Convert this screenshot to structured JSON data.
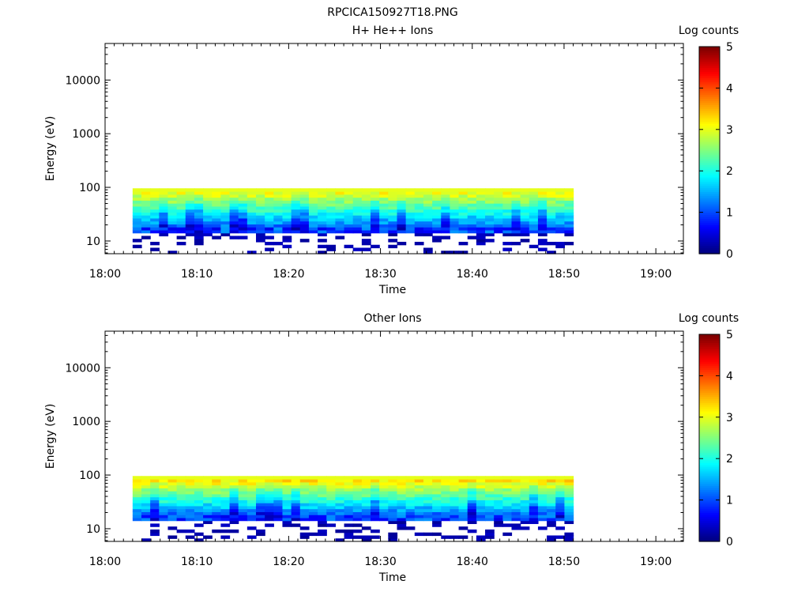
{
  "figure_title": "RPCICA150927T18.PNG",
  "chart_data": [
    {
      "type": "heatmap",
      "title": "H+ He++ Ions",
      "xlabel": "Time",
      "ylabel": "Energy (eV)",
      "x_ticks": [
        "18:00",
        "18:10",
        "18:20",
        "18:30",
        "18:40",
        "18:50",
        "19:00"
      ],
      "xlim": [
        "18:00",
        "19:03"
      ],
      "y_scale": "log",
      "y_ticks": [
        "10",
        "100",
        "1000",
        "10000"
      ],
      "ylim": [
        5.8,
        48000
      ],
      "colorbar": {
        "label": "Log counts",
        "ticks": [
          "0",
          "1",
          "2",
          "3",
          "4",
          "5"
        ],
        "range": [
          0,
          5
        ]
      },
      "data_time_range": [
        "18:03",
        "18:51"
      ],
      "data_energy_range_eV": [
        5.8,
        96
      ],
      "grid": false
    },
    {
      "type": "heatmap",
      "title": "Other Ions",
      "xlabel": "Time",
      "ylabel": "Energy (eV)",
      "x_ticks": [
        "18:00",
        "18:10",
        "18:20",
        "18:30",
        "18:40",
        "18:50",
        "19:00"
      ],
      "xlim": [
        "18:00",
        "19:03"
      ],
      "y_scale": "log",
      "y_ticks": [
        "10",
        "100",
        "1000",
        "10000"
      ],
      "ylim": [
        5.8,
        48000
      ],
      "colorbar": {
        "label": "Log counts",
        "ticks": [
          "0",
          "1",
          "2",
          "3",
          "4",
          "5"
        ],
        "range": [
          0,
          5
        ]
      },
      "data_time_range": [
        "18:03",
        "18:51"
      ],
      "data_energy_range_eV": [
        5.8,
        96
      ],
      "grid": false
    }
  ]
}
